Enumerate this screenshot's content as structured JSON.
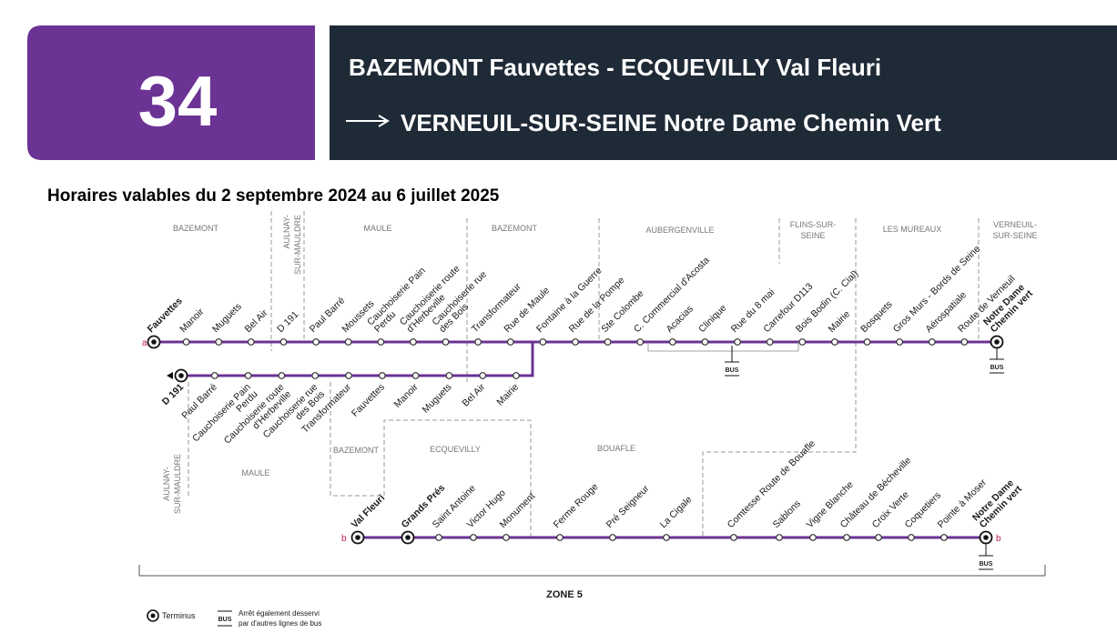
{
  "header": {
    "line_number": "34",
    "title": "BAZEMONT Fauvettes - ECQUEVILLY Val Fleuri",
    "destination": "VERNEUIL-SUR-SEINE Notre Dame Chemin Vert"
  },
  "validity": "Horaires valables du 2 septembre 2024 au 6 juillet 2025",
  "top_communes": [
    [
      "BAZEMONT"
    ],
    [
      "AULNAY-",
      "SUR-MAULDRE"
    ],
    [
      "MAULE"
    ],
    [
      "BAZEMONT"
    ],
    [
      "AUBERGENVILLE"
    ],
    [
      "FLINS-SUR-",
      "SEINE"
    ],
    [
      "LES MUREAUX"
    ],
    [
      "VERNEUIL-",
      "SUR-SEINE"
    ]
  ],
  "outbound": {
    "start_label": "a",
    "stops": [
      [
        "Fauvettes"
      ],
      [
        "Manoir"
      ],
      [
        "Muguets"
      ],
      [
        "Bel Air"
      ],
      [
        "D 191"
      ],
      [
        "Paul Barré"
      ],
      [
        "Moussets"
      ],
      [
        "Cauchoiserie Pain",
        "Perdu"
      ],
      [
        "Cauchoiserie route",
        "d'Herbeville"
      ],
      [
        "Cauchoiserie rue",
        "des Bois"
      ],
      [
        "Transformateur"
      ],
      [
        "Rue de Maule"
      ],
      [
        "Fontaine à la Guerre"
      ],
      [
        "Rue de la Pompe"
      ],
      [
        "Ste Colombe"
      ],
      [
        "C. Commercial d'Acosta"
      ],
      [
        "Acacias"
      ],
      [
        "Clinique"
      ],
      [
        "Rue du 8 mai"
      ],
      [
        "Carrefour D113"
      ],
      [
        "Bois Bodin (C. Cial)"
      ],
      [
        "Mairie"
      ],
      [
        "Bosquets"
      ],
      [
        "Gros Murs - Bords de Seine"
      ],
      [
        "Aérospatiale"
      ],
      [
        "Route de Verneuil"
      ],
      [
        "Notre Dame",
        "Chemin vert"
      ]
    ]
  },
  "return_branch": {
    "stops": [
      [
        "Mairie"
      ],
      [
        "Bel Air"
      ],
      [
        "Muguets"
      ],
      [
        "Manoir"
      ],
      [
        "Fauvettes"
      ],
      [
        "Transformateur"
      ],
      [
        "Cauchoiserie rue",
        "des Bois"
      ],
      [
        "Cauchoiserie route",
        "d'Herbeville"
      ],
      [
        "Cauchoiserie Pain",
        "Perdu"
      ],
      [
        "Paul Barré"
      ],
      [
        "D 191"
      ]
    ]
  },
  "middle_communes": [
    [
      "AULNAY-",
      "SUR-MAULDRE"
    ],
    [
      "MAULE"
    ],
    [
      "BAZEMONT"
    ],
    [
      "ECQUEVILLY"
    ],
    [
      "BOUAFLE"
    ]
  ],
  "branch_b": {
    "start_label": "b",
    "end_label": "b",
    "stops": [
      [
        "Val Fleuri"
      ],
      [
        "Grands Prés"
      ],
      [
        "Saint Antoine"
      ],
      [
        "Victor Hugo"
      ],
      [
        "Monument"
      ],
      [
        "Ferme Rouge"
      ],
      [
        "Pré Seigneur"
      ],
      [
        "La Cigale"
      ],
      [
        "Comtesse Route de Bouafle"
      ],
      [
        "Sablons"
      ],
      [
        "Vigne Blanche"
      ],
      [
        "Château de Bécheville"
      ],
      [
        "Croix Verte"
      ],
      [
        "Coquetiers"
      ],
      [
        "Pointe à Moser"
      ],
      [
        "Notre Dame",
        "Chemin vert"
      ]
    ]
  },
  "bus_badges": [
    "BUS",
    "BUS",
    "BUS"
  ],
  "zone": "ZONE 5",
  "legend": {
    "terminus": "Terminus",
    "bus": "BUS",
    "bus_text": [
      "Arrêt également desservi",
      "par d'autres lignes de bus"
    ]
  }
}
